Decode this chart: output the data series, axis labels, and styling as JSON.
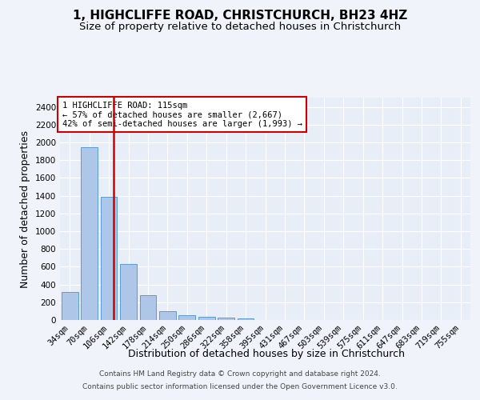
{
  "title": "1, HIGHCLIFFE ROAD, CHRISTCHURCH, BH23 4HZ",
  "subtitle": "Size of property relative to detached houses in Christchurch",
  "xlabel": "Distribution of detached houses by size in Christchurch",
  "ylabel": "Number of detached properties",
  "bar_labels": [
    "34sqm",
    "70sqm",
    "106sqm",
    "142sqm",
    "178sqm",
    "214sqm",
    "250sqm",
    "286sqm",
    "322sqm",
    "358sqm",
    "395sqm",
    "431sqm",
    "467sqm",
    "503sqm",
    "539sqm",
    "575sqm",
    "611sqm",
    "647sqm",
    "683sqm",
    "719sqm",
    "755sqm"
  ],
  "bar_values": [
    315,
    1950,
    1385,
    630,
    275,
    100,
    50,
    35,
    27,
    22,
    0,
    0,
    0,
    0,
    0,
    0,
    0,
    0,
    0,
    0,
    0
  ],
  "bar_color": "#aec6e8",
  "bar_edgecolor": "#5b9bd5",
  "redline_x": 2.25,
  "redline_label": "1 HIGHCLIFFE ROAD: 115sqm",
  "annotation_line1": "← 57% of detached houses are smaller (2,667)",
  "annotation_line2": "42% of semi-detached houses are larger (1,993) →",
  "ylim": [
    0,
    2500
  ],
  "yticks": [
    0,
    200,
    400,
    600,
    800,
    1000,
    1200,
    1400,
    1600,
    1800,
    2000,
    2200,
    2400
  ],
  "footer1": "Contains HM Land Registry data © Crown copyright and database right 2024.",
  "footer2": "Contains public sector information licensed under the Open Government Licence v3.0.",
  "bg_color": "#f0f4fa",
  "plot_bg_color": "#e8eef8",
  "grid_color": "#ffffff",
  "title_fontsize": 11,
  "subtitle_fontsize": 9.5,
  "axis_label_fontsize": 9,
  "tick_fontsize": 7.5,
  "annotation_box_edgecolor": "#cc0000",
  "redline_color": "#cc0000"
}
